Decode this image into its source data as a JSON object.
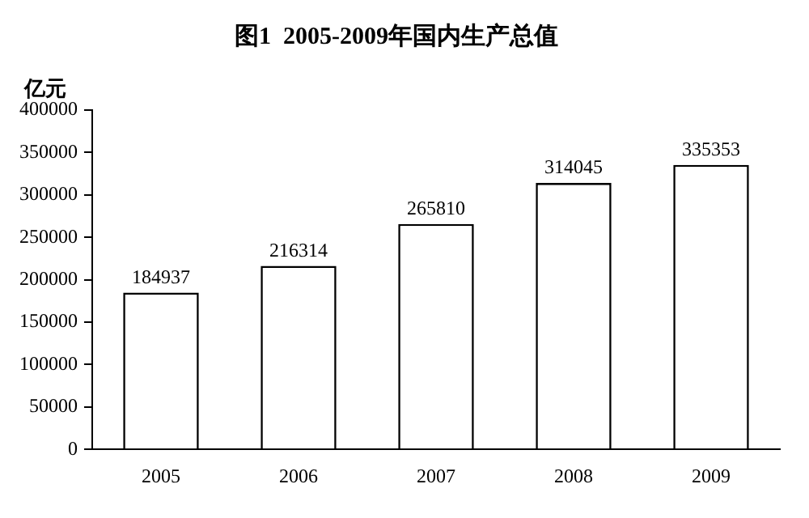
{
  "chart_data": {
    "type": "bar",
    "title": "图1  2005-2009年国内生产总值",
    "ylabel": "亿元",
    "categories": [
      "2005",
      "2006",
      "2007",
      "2008",
      "2009"
    ],
    "values": [
      184937,
      216314,
      265810,
      314045,
      335353
    ],
    "color": "#ffffff",
    "ylim": [
      0,
      400000
    ],
    "yticks": [
      0,
      50000,
      100000,
      150000,
      200000,
      250000,
      300000,
      350000,
      400000
    ],
    "grid": false,
    "legend": false,
    "data_labels": true
  }
}
